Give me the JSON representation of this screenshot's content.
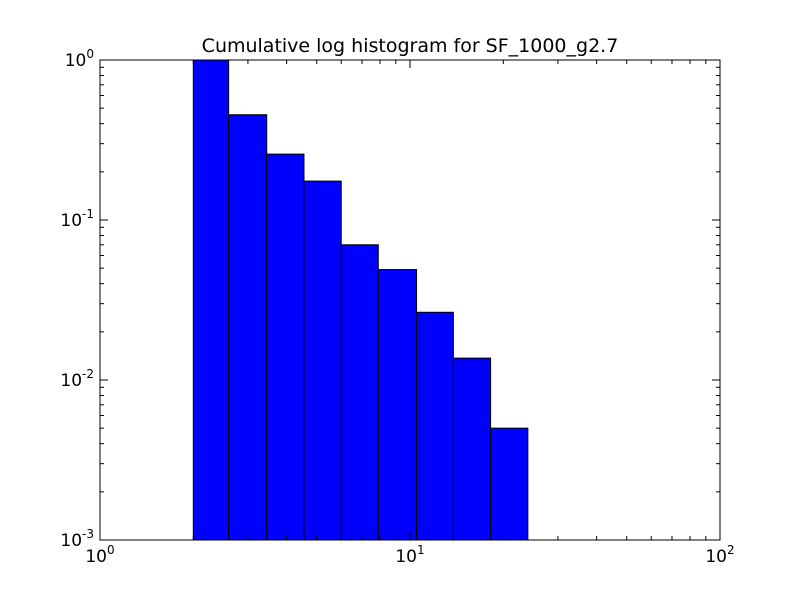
{
  "chart_data": {
    "type": "bar",
    "title": "Cumulative log histogram for SF_1000_g2.7",
    "xlabel": "",
    "ylabel": "",
    "xscale": "log",
    "yscale": "log",
    "xlim": [
      1,
      100
    ],
    "ylim": [
      0.001,
      1
    ],
    "grid": false,
    "legend": "none",
    "bar_color": "#0000ff",
    "edge_color": "#000000",
    "bins": [
      {
        "left": 2.0,
        "right": 2.6,
        "value": 1.0
      },
      {
        "left": 2.6,
        "right": 3.45,
        "value": 0.455
      },
      {
        "left": 3.45,
        "right": 4.55,
        "value": 0.258
      },
      {
        "left": 4.55,
        "right": 6.0,
        "value": 0.175
      },
      {
        "left": 6.0,
        "right": 7.9,
        "value": 0.07
      },
      {
        "left": 7.9,
        "right": 10.5,
        "value": 0.049
      },
      {
        "left": 10.5,
        "right": 13.8,
        "value": 0.0265
      },
      {
        "left": 13.8,
        "right": 18.2,
        "value": 0.0137
      },
      {
        "left": 18.2,
        "right": 24.0,
        "value": 0.005
      }
    ],
    "x_ticks": [
      {
        "base": "10",
        "exp": "0",
        "value": 1
      },
      {
        "base": "10",
        "exp": "1",
        "value": 10
      },
      {
        "base": "10",
        "exp": "2",
        "value": 100
      }
    ],
    "y_ticks": [
      {
        "base": "10",
        "exp": "0",
        "value": 1
      },
      {
        "base": "10",
        "exp": "-1",
        "value": 0.1
      },
      {
        "base": "10",
        "exp": "-2",
        "value": 0.01
      },
      {
        "base": "10",
        "exp": "-3",
        "value": 0.001
      }
    ]
  }
}
